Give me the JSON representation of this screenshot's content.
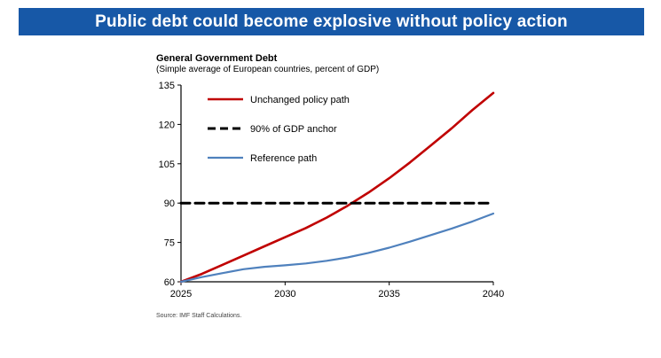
{
  "banner": {
    "title": "Public debt could become explosive without policy action",
    "bg_color": "#1758a7",
    "text_color": "#ffffff"
  },
  "chart": {
    "title": "General Government Debt",
    "subtitle": "(Simple average of European countries, percent of GDP)",
    "source": "Source: IMF Staff Calculations."
  },
  "chart_data": {
    "type": "line",
    "title": "General Government Debt",
    "subtitle": "(Simple average of European countries, percent of GDP)",
    "x": [
      2025,
      2026,
      2027,
      2028,
      2029,
      2030,
      2031,
      2032,
      2033,
      2034,
      2035,
      2036,
      2037,
      2038,
      2039,
      2040
    ],
    "series": [
      {
        "name": "Unchanged policy path",
        "color": "#c00000",
        "dash": null,
        "width": 2.6,
        "values": [
          60,
          63,
          66.5,
          70,
          73.5,
          77,
          80.5,
          84.5,
          89,
          94,
          99.5,
          105.5,
          112,
          118.5,
          125.5,
          132
        ]
      },
      {
        "name": "90% of GDP anchor",
        "color": "#000000",
        "dash": "10,6",
        "width": 3,
        "values": [
          90,
          90,
          90,
          90,
          90,
          90,
          90,
          90,
          90,
          90,
          90,
          90,
          90,
          90,
          90,
          90
        ]
      },
      {
        "name": "Reference path",
        "color": "#4f81bd",
        "dash": null,
        "width": 2.2,
        "values": [
          60,
          61.8,
          63.3,
          64.8,
          65.7,
          66.3,
          67,
          68,
          69.3,
          71,
          73,
          75.3,
          77.8,
          80.3,
          83,
          86
        ]
      }
    ],
    "xlim": [
      2025,
      2040
    ],
    "ylim": [
      60,
      135
    ],
    "xticks": [
      2025,
      2030,
      2035,
      2040
    ],
    "yticks": [
      60,
      75,
      90,
      105,
      120,
      135
    ],
    "grid": false,
    "legend_position": "upper-left",
    "source": "Source: IMF Staff Calculations."
  }
}
